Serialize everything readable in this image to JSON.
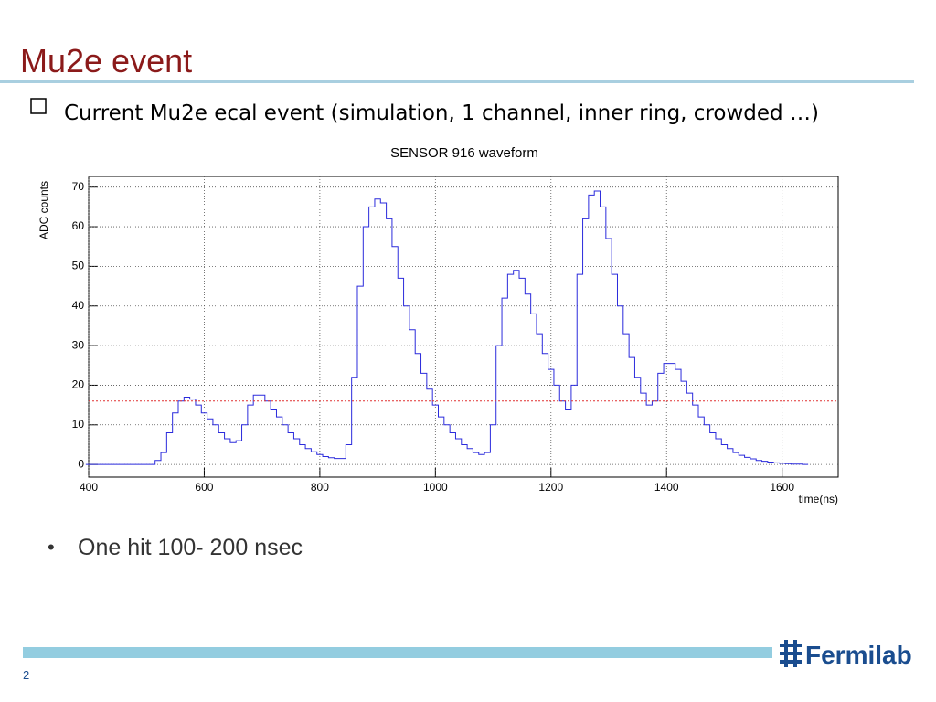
{
  "slide": {
    "title": "Mu2e event",
    "bullets": [
      "Current Mu2e  ecal event (simulation, 1 channel, inner ring, crowded …)",
      "One hit 100- 200 nsec"
    ],
    "logo": "Fermilab",
    "page_number": "2"
  },
  "chart_data": {
    "type": "step",
    "title": "SENSOR 916 waveform",
    "xlabel": "time(ns)",
    "ylabel": "ADC counts",
    "x": [
      400,
      410,
      420,
      430,
      440,
      450,
      460,
      470,
      480,
      490,
      500,
      510,
      520,
      530,
      540,
      550,
      560,
      570,
      580,
      590,
      600,
      610,
      620,
      630,
      640,
      650,
      660,
      670,
      680,
      690,
      700,
      710,
      720,
      730,
      740,
      750,
      760,
      770,
      780,
      790,
      800,
      810,
      820,
      830,
      840,
      850,
      860,
      870,
      880,
      890,
      900,
      910,
      920,
      930,
      940,
      950,
      960,
      970,
      980,
      990,
      1000,
      1010,
      1020,
      1030,
      1040,
      1050,
      1060,
      1070,
      1080,
      1090,
      1100,
      1110,
      1120,
      1130,
      1140,
      1150,
      1160,
      1170,
      1180,
      1190,
      1200,
      1210,
      1220,
      1230,
      1240,
      1250,
      1260,
      1270,
      1280,
      1290,
      1300,
      1310,
      1320,
      1330,
      1340,
      1350,
      1360,
      1370,
      1380,
      1390,
      1400,
      1410,
      1420,
      1430,
      1440,
      1450,
      1460,
      1470,
      1480,
      1490,
      1500,
      1510,
      1520,
      1530,
      1540,
      1550,
      1560,
      1570,
      1580,
      1590,
      1600,
      1610,
      1620,
      1630,
      1640
    ],
    "series": [
      {
        "color": "#2b2bdc",
        "values": [
          0,
          0,
          0,
          0,
          0,
          0,
          0,
          0,
          0,
          0,
          0,
          0,
          1,
          3,
          8,
          13,
          16,
          17,
          16.5,
          15,
          13,
          11.5,
          10,
          8,
          6.5,
          5.5,
          6,
          10,
          15,
          17.5,
          17.5,
          16,
          14,
          12,
          10,
          8,
          6.5,
          5,
          4,
          3.2,
          2.5,
          2,
          1.7,
          1.5,
          1.5,
          5,
          22,
          45,
          60,
          65,
          67,
          66,
          62,
          55,
          47,
          40,
          34,
          28,
          23,
          19,
          15,
          12,
          10,
          8,
          6.5,
          5,
          4,
          3,
          2.5,
          3,
          10,
          30,
          42,
          48,
          49,
          47,
          43,
          38,
          33,
          28,
          24,
          20,
          16,
          14,
          20,
          48,
          62,
          68,
          69,
          65,
          57,
          48,
          40,
          33,
          27,
          22,
          18,
          15,
          16,
          23,
          25.5,
          25.5,
          24,
          21,
          18,
          15,
          12,
          10,
          8,
          6.5,
          5,
          4,
          3,
          2.3,
          1.8,
          1.4,
          1,
          0.8,
          0.6,
          0.4,
          0.3,
          0.2,
          0.1,
          0.1,
          0
        ]
      }
    ],
    "threshold": {
      "value": 16,
      "color": "#e03030"
    },
    "xlim": [
      400,
      1697
    ],
    "ylim": [
      -3.2,
      72.7
    ],
    "xticks": [
      400,
      600,
      800,
      1000,
      1200,
      1400,
      1600
    ],
    "yticks": [
      0,
      10,
      20,
      30,
      40,
      50,
      60,
      70
    ],
    "grid": true
  }
}
